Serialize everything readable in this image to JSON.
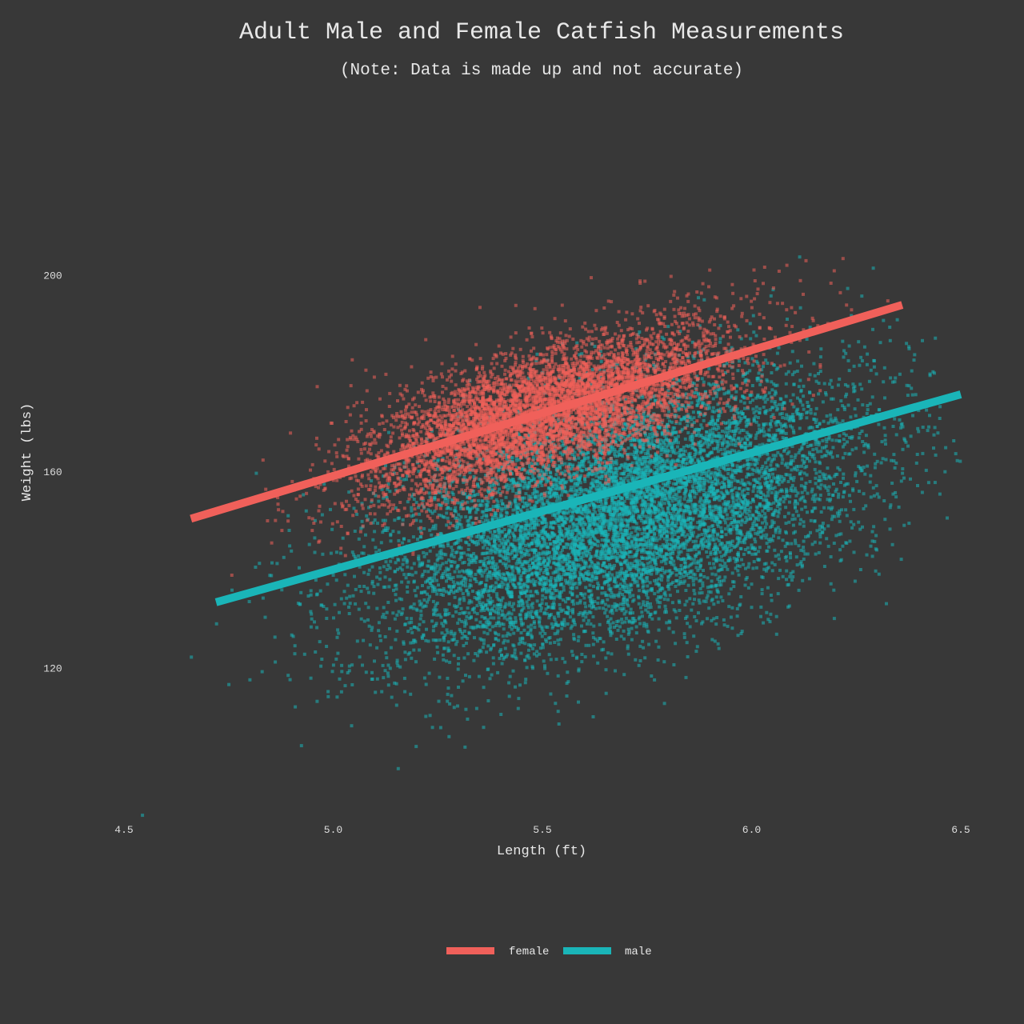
{
  "chart_data": {
    "type": "scatter",
    "title": "Adult Male and Female Catfish Measurements",
    "subtitle": "(Note: Data is made up and not accurate)",
    "xlabel": "Length (ft)",
    "ylabel": "Weight (lbs)",
    "xlim": [
      4.5,
      6.5
    ],
    "ylim": [
      90,
      230
    ],
    "x_ticks": [
      4.5,
      5.0,
      5.5,
      6.0,
      6.5
    ],
    "x_tick_labels": [
      "4.5",
      "5.0",
      "5.5",
      "6.0",
      "6.5"
    ],
    "y_ticks": [
      120,
      160,
      200
    ],
    "y_tick_labels": [
      "120",
      "160",
      "200"
    ],
    "grid": false,
    "legend_position": "bottom-center",
    "series": [
      {
        "name": "female",
        "color": "#f0605a",
        "point_cloud": {
          "center": [
            5.5,
            172
          ],
          "x_sd": 0.22,
          "y_sd": 6.5,
          "slope": 26,
          "count": 6000
        },
        "trend_line": {
          "x": [
            4.66,
            6.36
          ],
          "y": [
            150.5,
            194.0
          ]
        }
      },
      {
        "name": "male",
        "color": "#1ab5b8",
        "point_cloud": {
          "center": [
            5.68,
            151
          ],
          "x_sd": 0.29,
          "y_sd": 12,
          "slope": 24,
          "count": 9000
        },
        "trend_line": {
          "x": [
            4.72,
            6.5
          ],
          "y": [
            133.5,
            175.8
          ]
        }
      }
    ]
  }
}
